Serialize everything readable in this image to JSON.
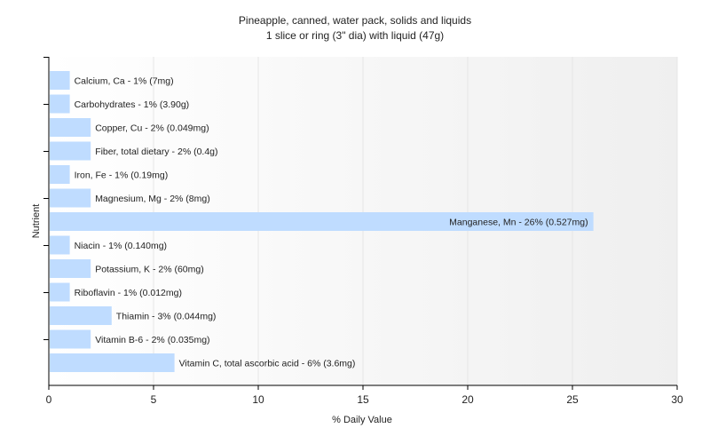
{
  "chart_data": {
    "type": "bar",
    "orientation": "horizontal",
    "title": "Pineapple, canned, water pack, solids and liquids",
    "subtitle": "1 slice or ring (3\" dia) with liquid (47g)",
    "xlabel": "% Daily Value",
    "ylabel": "Nutrient",
    "xlim": [
      0,
      30
    ],
    "xticks": [
      0,
      5,
      10,
      15,
      20,
      25,
      30
    ],
    "grid": true,
    "categories": [
      "Calcium, Ca",
      "Carbohydrates",
      "Copper, Cu",
      "Fiber, total dietary",
      "Iron, Fe",
      "Magnesium, Mg",
      "Manganese, Mn",
      "Niacin",
      "Potassium, K",
      "Riboflavin",
      "Thiamin",
      "Vitamin B-6",
      "Vitamin C, total ascorbic acid"
    ],
    "values": [
      1,
      1,
      2,
      2,
      1,
      2,
      26,
      1,
      2,
      1,
      3,
      2,
      6
    ],
    "labels": [
      "Calcium, Ca - 1% (7mg)",
      "Carbohydrates - 1% (3.90g)",
      "Copper, Cu - 2% (0.049mg)",
      "Fiber, total dietary - 2% (0.4g)",
      "Iron, Fe - 1% (0.19mg)",
      "Magnesium, Mg - 2% (8mg)",
      "Manganese, Mn - 26% (0.527mg)",
      "Niacin - 1% (0.140mg)",
      "Potassium, K - 2% (60mg)",
      "Riboflavin - 1% (0.012mg)",
      "Thiamin - 3% (0.044mg)",
      "Vitamin B-6 - 2% (0.035mg)",
      "Vitamin C, total ascorbic acid - 6% (3.6mg)"
    ],
    "colors": {
      "bar": "#bfdcff",
      "grid": "#e6e6e6",
      "axis": "#000000"
    }
  }
}
